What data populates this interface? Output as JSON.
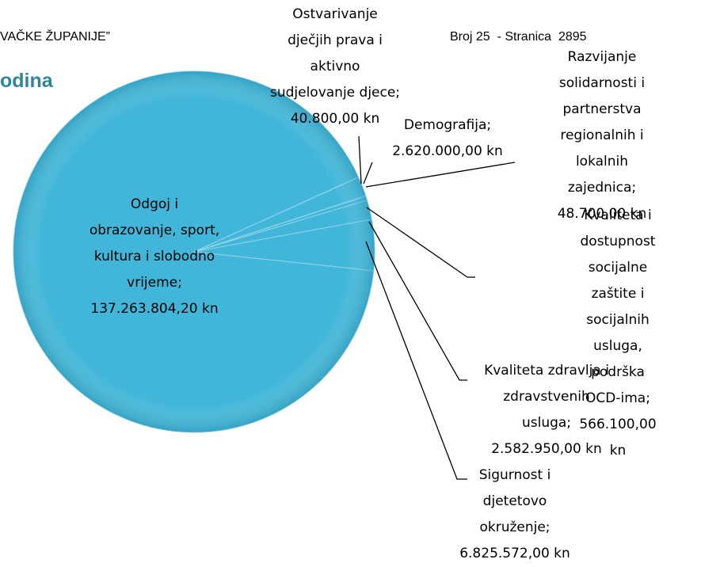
{
  "header": {
    "left": "VAČKE ŽUPANIJE”",
    "right": "Broj 25  - Stranica  2895",
    "heading": "odina"
  },
  "chart_data": {
    "type": "pie",
    "categories": [
      "Odgoj i\nobrazovanje, sport,\nkultura i slobodno\nvrijeme;",
      "Ostvarivanje\ndječjih prava i\naktivno\nsudjelovanje djece;",
      "Demografija;",
      "Razvijanje\nsolidarnosti i\npartnerstva\nregionalnih i\nlokalnih zajednica;",
      "Kvaliteta i\ndostupnost\nsocijalne zaštite i\nsocijalnih usluga,\npodrška OCD-ima;",
      "Kvaliteta zdravlja i\nzdravstvenih\nusluga;",
      "Sigurnost i\ndjetetovo\nokruženje;"
    ],
    "values": [
      137263804.2,
      40800.0,
      2620000.0,
      48700.0,
      566100.0,
      2582950.0,
      6825572.0
    ],
    "value_labels": [
      "137.263.804,20 kn",
      "40.800,00 kn",
      "2.620.000,00 kn",
      "48.700,00 kn",
      "566.100,00 kn",
      "2.582.950,00 kn",
      "6.825.572,00 kn"
    ],
    "color": "#41b6d9"
  }
}
